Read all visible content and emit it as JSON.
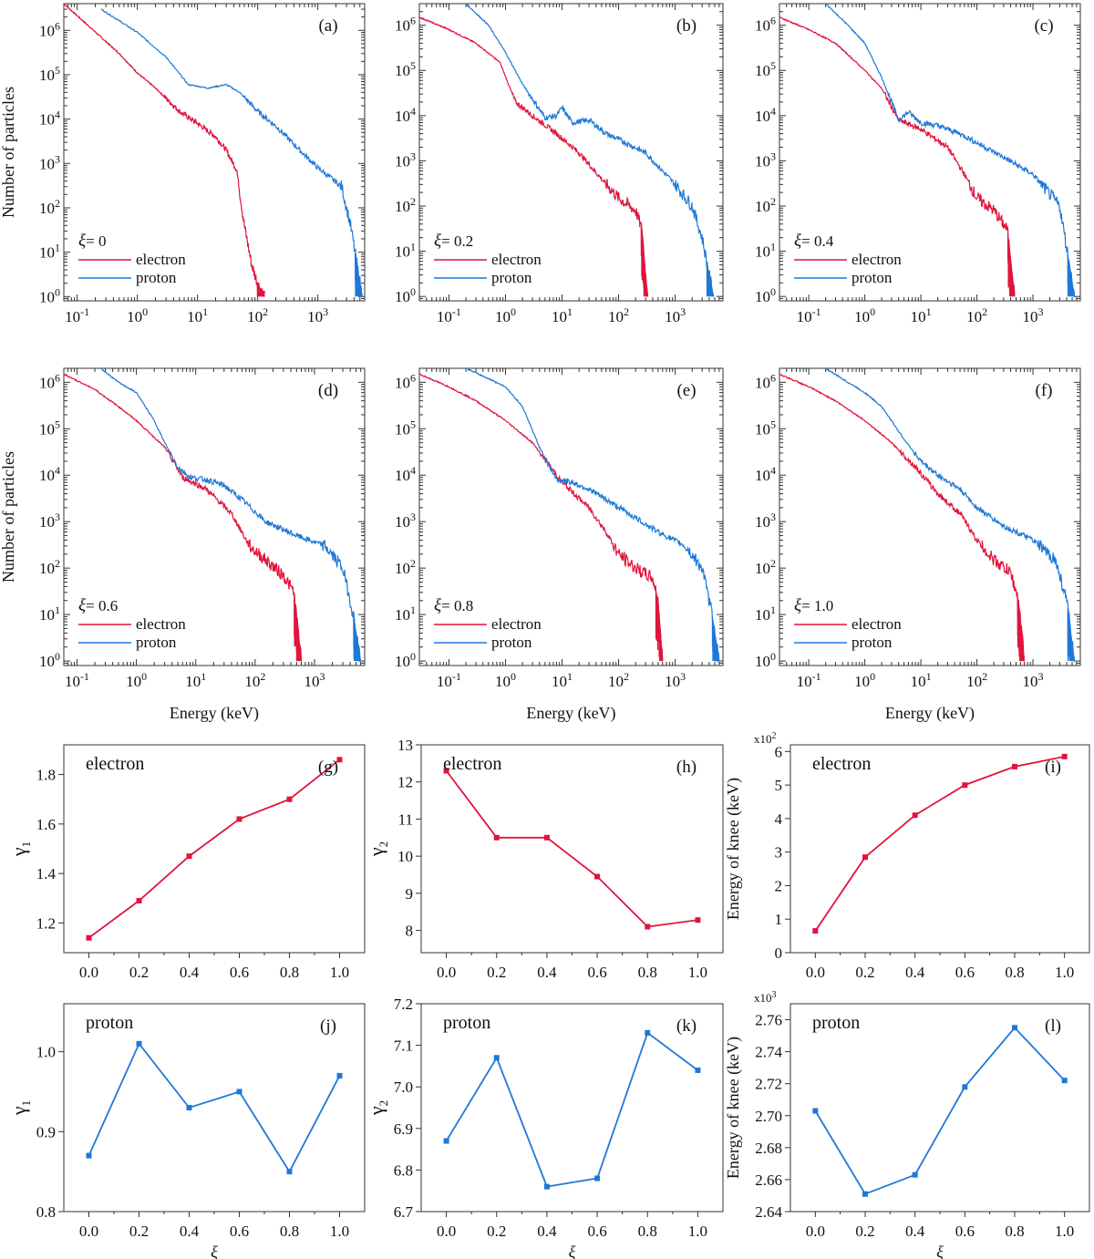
{
  "colors": {
    "electron": "#e0143c",
    "proton": "#1f78d8",
    "axis": "#333333"
  },
  "chart_data": [
    {
      "type": "line",
      "id": "a",
      "panel_label": "(a)",
      "scale": "log-log",
      "xlim": [
        0.06,
        6000
      ],
      "ylim": [
        0.8,
        4000000
      ],
      "x_ticks": [
        "10-1",
        "100",
        "101",
        "102",
        "103"
      ],
      "y_ticks": [
        "100",
        "101",
        "102",
        "103",
        "104",
        "105",
        "106"
      ],
      "ylabel": "Number of particles",
      "xlabel": "",
      "legend_title": "ξ= 0",
      "series": [
        {
          "name": "electron",
          "x": [
            0.06,
            0.5,
            1.0,
            2.0,
            5.0,
            10,
            20,
            30,
            45,
            60,
            80,
            100,
            130
          ],
          "y": [
            4000000,
            300000,
            110000,
            50000,
            15000,
            8000,
            4000,
            2000,
            700,
            40,
            5,
            2,
            1
          ]
        },
        {
          "name": "proton",
          "x": [
            0.25,
            1,
            3,
            7,
            15,
            30,
            50,
            100,
            200,
            500,
            1000,
            2500,
            3500,
            4500,
            5500
          ],
          "y": [
            3000000,
            900000,
            250000,
            60000,
            50000,
            60000,
            40000,
            15000,
            7000,
            2000,
            800,
            300,
            40,
            5,
            1
          ]
        }
      ]
    },
    {
      "type": "line",
      "id": "b",
      "panel_label": "(b)",
      "scale": "log-log",
      "xlim": [
        0.03,
        7000
      ],
      "ylim": [
        0.8,
        3000000
      ],
      "x_ticks": [
        "10-1",
        "100",
        "101",
        "102",
        "103"
      ],
      "y_ticks": [
        "100",
        "101",
        "102",
        "103",
        "104",
        "105",
        "106"
      ],
      "ylabel": "",
      "xlabel": "",
      "legend_title": "ξ= 0.2",
      "series": [
        {
          "name": "electron",
          "x": [
            0.03,
            0.1,
            0.3,
            0.8,
            1.5,
            3,
            8,
            20,
            50,
            100,
            200,
            260,
            300,
            330
          ],
          "y": [
            1500000,
            800000,
            400000,
            150000,
            20000,
            10000,
            4000,
            1500,
            400,
            150,
            80,
            30,
            3,
            1
          ]
        },
        {
          "name": "proton",
          "x": [
            0.2,
            0.5,
            1,
            2,
            5,
            8,
            10,
            15,
            30,
            60,
            100,
            300,
            1000,
            2000,
            3000,
            4000,
            4800
          ],
          "y": [
            3000000,
            1000000,
            250000,
            50000,
            9000,
            10000,
            15000,
            7000,
            8000,
            4000,
            3000,
            1500,
            300,
            100,
            20,
            3,
            1
          ]
        }
      ]
    },
    {
      "type": "line",
      "id": "c",
      "panel_label": "(c)",
      "scale": "log-log",
      "xlim": [
        0.03,
        7000
      ],
      "ylim": [
        0.8,
        3000000
      ],
      "x_ticks": [
        "10-1",
        "100",
        "101",
        "102",
        "103"
      ],
      "y_ticks": [
        "100",
        "101",
        "102",
        "103",
        "104",
        "105",
        "106"
      ],
      "ylabel": "",
      "xlabel": "",
      "legend_title": "ξ= 0.4",
      "series": [
        {
          "name": "electron",
          "x": [
            0.03,
            0.1,
            0.3,
            1,
            2,
            4,
            10,
            30,
            60,
            100,
            200,
            350,
            430,
            470
          ],
          "y": [
            1500000,
            800000,
            400000,
            100000,
            40000,
            8000,
            5000,
            2000,
            500,
            150,
            80,
            30,
            3,
            1
          ]
        },
        {
          "name": "proton",
          "x": [
            0.2,
            0.5,
            1,
            2,
            3,
            4,
            6,
            10,
            20,
            50,
            100,
            300,
            1000,
            3000,
            4500,
            5500
          ],
          "y": [
            3000000,
            1000000,
            400000,
            70000,
            20000,
            8000,
            12000,
            7000,
            6000,
            4000,
            2500,
            1200,
            500,
            100,
            5,
            1
          ]
        }
      ]
    },
    {
      "type": "line",
      "id": "d",
      "panel_label": "(d)",
      "scale": "log-log",
      "xlim": [
        0.06,
        7000
      ],
      "ylim": [
        0.8,
        2000000
      ],
      "x_ticks": [
        "10-1",
        "100",
        "101",
        "102",
        "103"
      ],
      "y_ticks": [
        "100",
        "101",
        "102",
        "103",
        "104",
        "105",
        "106"
      ],
      "ylabel": "Number of particles",
      "xlabel": "Energy (keV)",
      "legend_title": "ξ= 0.6",
      "series": [
        {
          "name": "electron",
          "x": [
            0.06,
            0.2,
            0.5,
            1,
            3,
            6,
            15,
            40,
            80,
            150,
            300,
            450,
            550,
            600
          ],
          "y": [
            1500000,
            700000,
            300000,
            150000,
            40000,
            9000,
            5000,
            1500,
            300,
            150,
            70,
            30,
            3,
            1
          ]
        },
        {
          "name": "proton",
          "x": [
            0.25,
            0.5,
            1,
            2,
            3,
            5,
            8,
            15,
            30,
            60,
            150,
            500,
            1500,
            3000,
            4500,
            6000
          ],
          "y": [
            2000000,
            1000000,
            600000,
            150000,
            50000,
            15000,
            9000,
            8000,
            6000,
            3000,
            1000,
            500,
            300,
            100,
            10,
            1
          ]
        }
      ]
    },
    {
      "type": "line",
      "id": "e",
      "panel_label": "(e)",
      "scale": "log-log",
      "xlim": [
        0.03,
        7000
      ],
      "ylim": [
        0.8,
        2000000
      ],
      "x_ticks": [
        "10-1",
        "100",
        "101",
        "102",
        "103"
      ],
      "y_ticks": [
        "100",
        "101",
        "102",
        "103",
        "104",
        "105",
        "106"
      ],
      "ylabel": "",
      "xlabel": "Energy (keV)",
      "legend_title": "ξ= 0.8",
      "series": [
        {
          "name": "electron",
          "x": [
            0.03,
            0.1,
            0.3,
            1,
            3,
            10,
            30,
            60,
            100,
            200,
            400,
            500,
            560,
            600
          ],
          "y": [
            1500000,
            800000,
            400000,
            150000,
            50000,
            7000,
            2000,
            600,
            200,
            100,
            60,
            20,
            3,
            1
          ]
        },
        {
          "name": "proton",
          "x": [
            0.2,
            0.5,
            1,
            2,
            4,
            8,
            15,
            30,
            60,
            150,
            500,
            1500,
            3000,
            4500,
            6000
          ],
          "y": [
            2000000,
            1200000,
            800000,
            300000,
            40000,
            8000,
            7000,
            5000,
            3000,
            1500,
            600,
            300,
            100,
            10,
            1
          ]
        }
      ]
    },
    {
      "type": "line",
      "id": "f",
      "panel_label": "(f)",
      "scale": "log-log",
      "xlim": [
        0.03,
        7000
      ],
      "ylim": [
        0.8,
        2000000
      ],
      "x_ticks": [
        "10-1",
        "100",
        "101",
        "102",
        "103"
      ],
      "y_ticks": [
        "100",
        "101",
        "102",
        "103",
        "104",
        "105",
        "106"
      ],
      "ylabel": "",
      "xlabel": "Energy (keV)",
      "legend_title": "ξ= 1.0",
      "series": [
        {
          "name": "electron",
          "x": [
            0.03,
            0.1,
            0.3,
            1,
            3,
            8,
            20,
            50,
            100,
            200,
            400,
            550,
            650,
            700
          ],
          "y": [
            1500000,
            800000,
            400000,
            150000,
            50000,
            15000,
            4000,
            1500,
            400,
            150,
            80,
            20,
            3,
            1
          ]
        },
        {
          "name": "proton",
          "x": [
            0.2,
            0.5,
            1,
            2,
            5,
            10,
            20,
            50,
            100,
            300,
            1000,
            2500,
            4000,
            5500
          ],
          "y": [
            2000000,
            1000000,
            600000,
            300000,
            60000,
            20000,
            10000,
            5000,
            2000,
            800,
            400,
            150,
            20,
            1
          ]
        }
      ]
    },
    {
      "type": "line",
      "id": "g",
      "panel_label": "(g)",
      "particle": "electron",
      "x": [
        0.0,
        0.2,
        0.4,
        0.6,
        0.8,
        1.0
      ],
      "values": [
        1.14,
        1.29,
        1.47,
        1.62,
        1.7,
        1.86
      ],
      "xlim": [
        -0.1,
        1.1
      ],
      "ylim": [
        1.08,
        1.92
      ],
      "x_ticks": [
        "0.0",
        "0.2",
        "0.4",
        "0.6",
        "0.8",
        "1.0"
      ],
      "y_ticks": [
        "1.2",
        "1.4",
        "1.6",
        "1.8"
      ],
      "y_tick_values": [
        1.2,
        1.4,
        1.6,
        1.8
      ],
      "ylabel": "γ1",
      "xlabel": "",
      "multiplier": ""
    },
    {
      "type": "line",
      "id": "h",
      "panel_label": "(h)",
      "particle": "electron",
      "x": [
        0.0,
        0.2,
        0.4,
        0.6,
        0.8,
        1.0
      ],
      "values": [
        12.3,
        10.5,
        10.5,
        9.45,
        8.1,
        8.28
      ],
      "xlim": [
        -0.1,
        1.1
      ],
      "ylim": [
        7.4,
        13.0
      ],
      "x_ticks": [
        "0.0",
        "0.2",
        "0.4",
        "0.6",
        "0.8",
        "1.0"
      ],
      "y_ticks": [
        "8",
        "9",
        "10",
        "11",
        "12",
        "13"
      ],
      "y_tick_values": [
        8,
        9,
        10,
        11,
        12,
        13
      ],
      "ylabel": "γ2",
      "xlabel": "",
      "multiplier": ""
    },
    {
      "type": "line",
      "id": "i",
      "panel_label": "(i)",
      "particle": "electron",
      "x": [
        0.0,
        0.2,
        0.4,
        0.6,
        0.8,
        1.0
      ],
      "values": [
        0.65,
        2.85,
        4.1,
        5.0,
        5.55,
        5.85
      ],
      "xlim": [
        -0.1,
        1.1
      ],
      "ylim": [
        0,
        6.2
      ],
      "x_ticks": [
        "0.0",
        "0.2",
        "0.4",
        "0.6",
        "0.8",
        "1.0"
      ],
      "y_ticks": [
        "0",
        "1",
        "2",
        "3",
        "4",
        "5",
        "6"
      ],
      "y_tick_values": [
        0,
        1,
        2,
        3,
        4,
        5,
        6
      ],
      "ylabel": "Energy of  knee  (keV)",
      "xlabel": "",
      "multiplier": "x10",
      "multiplier_exp": "2"
    },
    {
      "type": "line",
      "id": "j",
      "panel_label": "(j)",
      "particle": "proton",
      "x": [
        0.0,
        0.2,
        0.4,
        0.6,
        0.8,
        1.0
      ],
      "values": [
        0.87,
        1.01,
        0.93,
        0.95,
        0.85,
        0.97
      ],
      "xlim": [
        -0.1,
        1.1
      ],
      "ylim": [
        0.8,
        1.06
      ],
      "x_ticks": [
        "0.0",
        "0.2",
        "0.4",
        "0.6",
        "0.8",
        "1.0"
      ],
      "y_ticks": [
        "0.8",
        "0.9",
        "1.0"
      ],
      "y_tick_values": [
        0.8,
        0.9,
        1.0
      ],
      "ylabel": "γ1",
      "xlabel": "ξ",
      "multiplier": ""
    },
    {
      "type": "line",
      "id": "k",
      "panel_label": "(k)",
      "particle": "proton",
      "x": [
        0.0,
        0.2,
        0.4,
        0.6,
        0.8,
        1.0
      ],
      "values": [
        6.87,
        7.07,
        6.76,
        6.78,
        7.13,
        7.04
      ],
      "xlim": [
        -0.1,
        1.1
      ],
      "ylim": [
        6.7,
        7.2
      ],
      "x_ticks": [
        "0.0",
        "0.2",
        "0.4",
        "0.6",
        "0.8",
        "1.0"
      ],
      "y_ticks": [
        "6.7",
        "6.8",
        "6.9",
        "7.0",
        "7.1",
        "7.2"
      ],
      "y_tick_values": [
        6.7,
        6.8,
        6.9,
        7.0,
        7.1,
        7.2
      ],
      "ylabel": "γ2",
      "xlabel": "ξ",
      "multiplier": ""
    },
    {
      "type": "line",
      "id": "l",
      "panel_label": "(l)",
      "particle": "proton",
      "x": [
        0.0,
        0.2,
        0.4,
        0.6,
        0.8,
        1.0
      ],
      "values": [
        2.703,
        2.651,
        2.663,
        2.718,
        2.755,
        2.722
      ],
      "xlim": [
        -0.1,
        1.1
      ],
      "ylim": [
        2.64,
        2.77
      ],
      "x_ticks": [
        "0.0",
        "0.2",
        "0.4",
        "0.6",
        "0.8",
        "1.0"
      ],
      "y_ticks": [
        "2.64",
        "2.66",
        "2.68",
        "2.70",
        "2.72",
        "2.74",
        "2.76"
      ],
      "y_tick_values": [
        2.64,
        2.66,
        2.68,
        2.7,
        2.72,
        2.74,
        2.76
      ],
      "ylabel": "Energy of  knee  (keV)",
      "xlabel": "ξ",
      "multiplier": "x10",
      "multiplier_exp": "3"
    }
  ]
}
